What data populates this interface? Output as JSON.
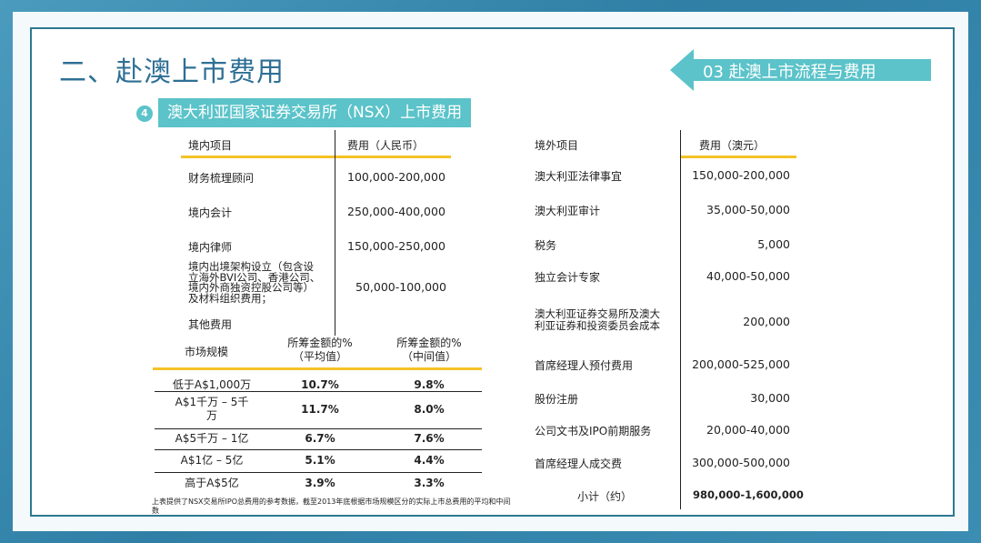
{
  "title": "二、赴澳上市费用",
  "section_tag": "03  赴澳上市流程与费用",
  "subhead": {
    "num": "4",
    "text": "澳大利亚国家证券交易所（NSX）上市费用"
  },
  "domestic": {
    "col1": "境内项目",
    "col2": "费用（人民币）",
    "rows": [
      {
        "item": "财务梳理顾问",
        "fee": "100,000-200,000"
      },
      {
        "item": "境内会计",
        "fee": "250,000-400,000"
      },
      {
        "item": "境内律师",
        "fee": "150,000-250,000"
      },
      {
        "item": [
          "境内出境架构设立（包含设",
          "立海外BVI公司、香港公司、",
          "境内外商独资控股公司等）",
          "及材料组织费用；"
        ],
        "fee": "50,000-100,000"
      },
      {
        "item": "其他费用",
        "fee": ""
      }
    ]
  },
  "market": {
    "col1": "市场规模",
    "col2": [
      "所筹金额的%",
      "（平均值）"
    ],
    "col3": [
      "所筹金额的%",
      "（中间值）"
    ],
    "rows": [
      {
        "size": [
          "低于A$1,000万"
        ],
        "avg": "10.7%",
        "mid": "9.8%"
      },
      {
        "size": [
          "A$1千万 – 5千",
          "万"
        ],
        "avg": "11.7%",
        "mid": "8.0%"
      },
      {
        "size": [
          "A$5千万 – 1亿"
        ],
        "avg": "6.7%",
        "mid": "7.6%"
      },
      {
        "size": [
          "A$1亿 – 5亿"
        ],
        "avg": "5.1%",
        "mid": "4.4%"
      },
      {
        "size": [
          "高于A$5亿"
        ],
        "avg": "3.9%",
        "mid": "3.3%"
      }
    ]
  },
  "note": "上表提供了NSX交易所IPO总费用的参考数据，截至2013年底根据市场规模区分的实际上市总费用的平均和中间数",
  "overseas": {
    "col1": "境外项目",
    "col2": "费用（澳元）",
    "rows": [
      {
        "item": [
          "澳大利亚法律事宜"
        ],
        "fee": "150,000-200,000"
      },
      {
        "item": [
          "澳大利亚审计"
        ],
        "fee": "35,000-50,000"
      },
      {
        "item": [
          "税务"
        ],
        "fee": "5,000"
      },
      {
        "item": [
          "独立会计专家"
        ],
        "fee": "40,000-50,000"
      },
      {
        "item": [
          "澳大利亚证券交易所及澳大",
          "利亚证券和投资委员会成本"
        ],
        "fee": "200,000"
      },
      {
        "item": [
          "首席经理人预付费用"
        ],
        "fee": "200,000-525,000"
      },
      {
        "item": [
          "股份注册"
        ],
        "fee": "30,000"
      },
      {
        "item": [
          "公司文书及IPO前期服务"
        ],
        "fee": "20,000-40,000"
      },
      {
        "item": [
          "首席经理人成交费"
        ],
        "fee": "300,000-500,000"
      }
    ],
    "total_label": "小计（约）",
    "total_value": "980,000-1,600,000"
  },
  "colors": {
    "title": "#2e6f95",
    "teal": "#5bc3c9",
    "yellow": "#f5c227",
    "frame": "#2e7891"
  }
}
